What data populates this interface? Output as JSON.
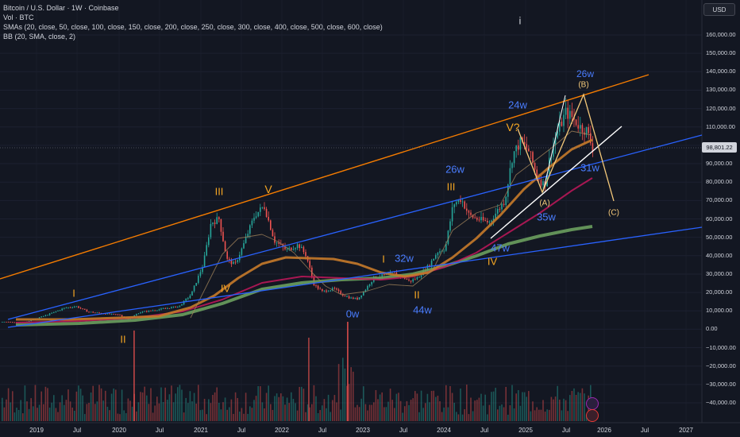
{
  "header": {
    "symbol_line": "Bitcoin / U.S. Dollar · 1W · Coinbase",
    "vol_line": "Vol · BTC",
    "sma_line": "SMAs (20, close, 50, close, 100, close, 150, close, 200, close, 250, close, 300, close, 400, close, 500, close, 600, close)",
    "bb_line": "BB (20, SMA, close, 2)"
  },
  "currency_button": "USD",
  "top_marker": "i",
  "current_price": "98,801.22",
  "y_axis": {
    "labels": [
      "160,000.00",
      "150,000.00",
      "140,000.00",
      "130,000.00",
      "120,000.00",
      "110,000.00",
      "100,000.00",
      "90,000.00",
      "80,000.00",
      "70,000.00",
      "60,000.00",
      "50,000.00",
      "40,000.00",
      "30,000.00",
      "20,000.00",
      "10,000.00",
      "0.00",
      "−10,000.00",
      "−20,000.00",
      "−30,000.00",
      "−40,000.00"
    ]
  },
  "x_axis": {
    "labels": [
      "2019",
      "Jul",
      "2020",
      "Jul",
      "2021",
      "Jul",
      "2022",
      "Jul",
      "2023",
      "Jul",
      "2024",
      "Jul",
      "2025",
      "Jul",
      "2026",
      "Jul",
      "2027"
    ]
  },
  "annotations": {
    "wave_I_1": "I",
    "wave_II_1": "II",
    "wave_III_1": "III",
    "wave_IV_1": "IV",
    "wave_V_1": "V",
    "wave_I_2": "I",
    "wave_II_2": "II",
    "wave_III_2": "III",
    "wave_IV_2": "IV",
    "wave_V_2": "V?",
    "wave_A": "(A)",
    "wave_B": "(B)",
    "wave_C": "(C)",
    "w0": "0w",
    "w32": "32w",
    "w44": "44w",
    "w26a": "26w",
    "w47": "47w",
    "w24": "24w",
    "w35": "35w",
    "w26b": "26w",
    "w31": "31w"
  },
  "colors": {
    "background": "#131722",
    "up": "#26a69a",
    "down": "#ef5350",
    "channel_orange": "#f57c00",
    "channel_blue": "#2962ff",
    "wave_label_orange": "#f5a623",
    "week_label_blue": "#4a7dff"
  }
}
